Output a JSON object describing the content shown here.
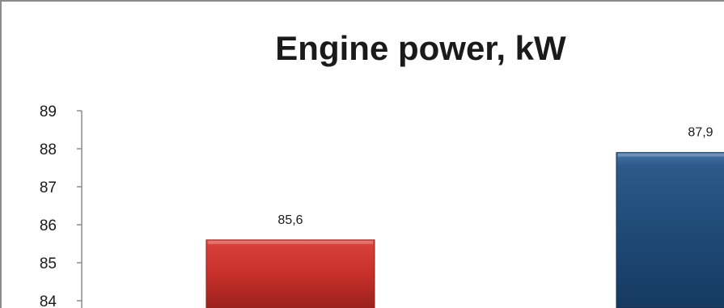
{
  "chart_data": {
    "type": "bar",
    "title": "Engine power, kW",
    "xlabel": "",
    "ylabel": "",
    "categories": [
      "",
      ""
    ],
    "values": [
      85.6,
      87.9
    ],
    "value_labels": [
      "85,6",
      "87,9"
    ],
    "bar_colors": [
      "#c8302b",
      "#1f4a78"
    ],
    "ylim": [
      84,
      89
    ],
    "yticks": [
      84,
      85,
      86,
      87,
      88,
      89
    ],
    "grid": false,
    "legend": "none"
  }
}
